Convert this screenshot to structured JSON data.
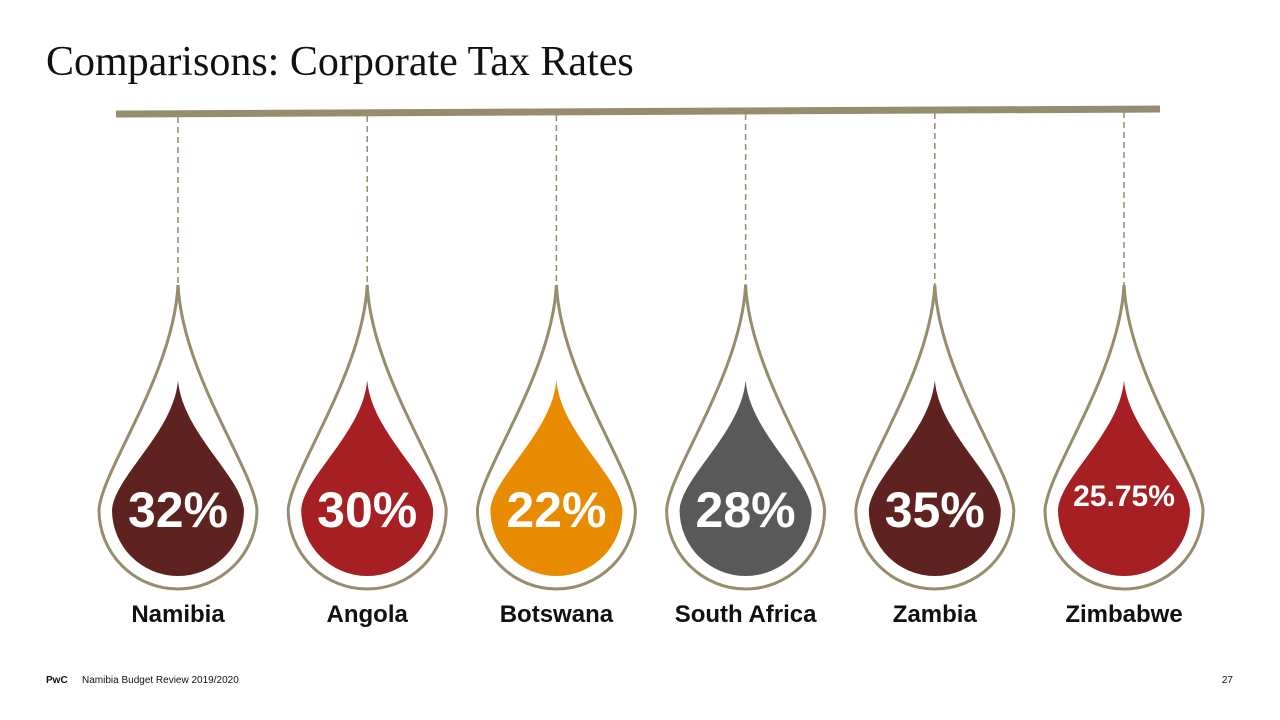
{
  "title": "Comparisons: Corporate Tax Rates",
  "chart_data": {
    "type": "bar",
    "title": "Comparisons: Corporate Tax Rates",
    "categories": [
      "Namibia",
      "Angola",
      "Botswana",
      "South Africa",
      "Zambia",
      "Zimbabwe"
    ],
    "values": [
      32,
      30,
      22,
      28,
      35,
      25.75
    ],
    "value_labels": [
      "32%",
      "30%",
      "22%",
      "28%",
      "35%",
      "25.75%"
    ],
    "unit": "%",
    "colors": [
      "#5e2320",
      "#a62023",
      "#e98b00",
      "#595959",
      "#5e2320",
      "#a62023"
    ],
    "accent_color": "#968c6e",
    "grid": false,
    "legend": "none"
  },
  "footer": {
    "brand": "PwC",
    "text": "Namibia Budget Review 2019/2020",
    "page_number": "27"
  }
}
